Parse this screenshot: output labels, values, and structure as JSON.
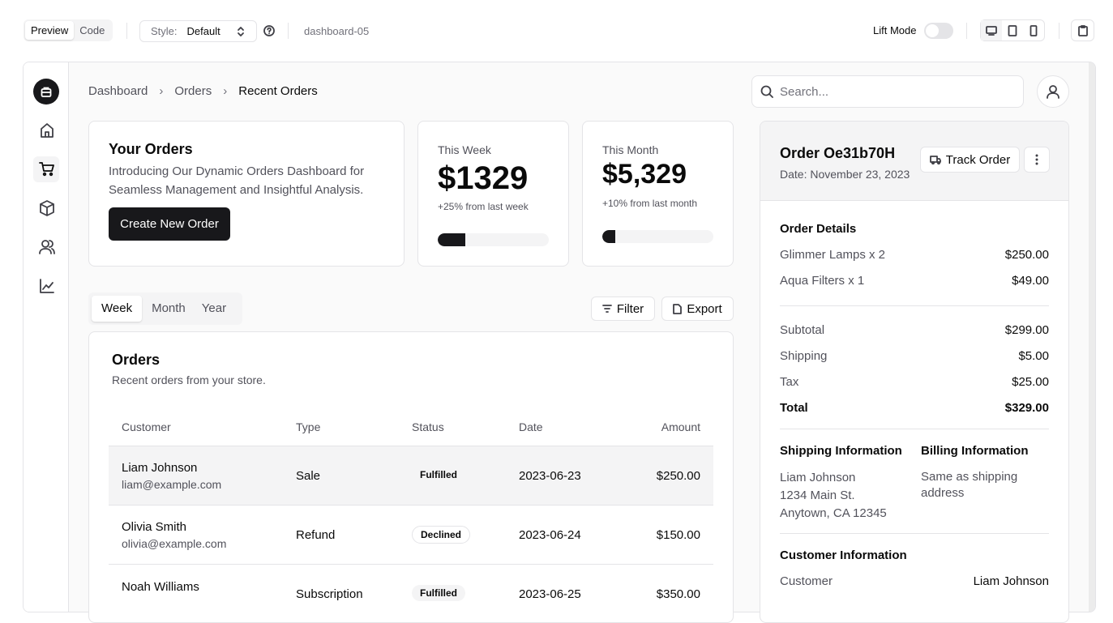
{
  "toolbar": {
    "tabs": [
      "Preview",
      "Code"
    ],
    "style_label": "Style:",
    "style_value": "Default",
    "block_name": "dashboard-05",
    "lift_mode": "Lift Mode"
  },
  "breadcrumb": [
    "Dashboard",
    "Orders",
    "Recent Orders"
  ],
  "search_placeholder": "Search...",
  "your_orders": {
    "title": "Your Orders",
    "description": "Introducing Our Dynamic Orders Dashboard for Seamless Management and Insightful Analysis.",
    "button": "Create New Order"
  },
  "stats": [
    {
      "label": "This Week",
      "value": "$1329",
      "change": "+25% from last week",
      "progress": 25
    },
    {
      "label": "This Month",
      "value": "$5,329",
      "change": "+10% from last month",
      "progress": 12
    }
  ],
  "period_tabs": [
    "Week",
    "Month",
    "Year"
  ],
  "actions": [
    "Filter",
    "Export"
  ],
  "orders": {
    "title": "Orders",
    "subtitle": "Recent orders from your store.",
    "columns": [
      "Customer",
      "Type",
      "Status",
      "Date",
      "Amount"
    ],
    "rows": [
      [
        "Liam Johnson",
        "liam@example.com",
        "Sale",
        "Fulfilled",
        "2023-06-23",
        "$250.00"
      ],
      [
        "Olivia Smith",
        "olivia@example.com",
        "Refund",
        "Declined",
        "2023-06-24",
        "$150.00"
      ],
      [
        "Noah Williams",
        null,
        "Subscription",
        "Fulfilled",
        "2023-06-25",
        "$350.00"
      ]
    ]
  },
  "order_panel": {
    "title": "Order Oe31b70H",
    "date": "Date: November 23, 2023",
    "track_button": "Track Order",
    "details_title": "Order Details",
    "items": [
      [
        "Glimmer Lamps x 2",
        "$250.00"
      ],
      [
        "Aqua Filters x 1",
        "$49.00"
      ]
    ],
    "totals": [
      [
        "Subtotal",
        "$299.00"
      ],
      [
        "Shipping",
        "$5.00"
      ],
      [
        "Tax",
        "$25.00"
      ],
      [
        "Total",
        "$329.00"
      ]
    ],
    "shipping_title": "Shipping Information",
    "shipping_address": [
      "Liam Johnson",
      "1234 Main St.",
      "Anytown, CA 12345"
    ],
    "billing_title": "Billing Information",
    "billing_text": "Same as shipping address",
    "customer_title": "Customer Information",
    "customer_label": "Customer",
    "customer_value": "Liam Johnson"
  }
}
